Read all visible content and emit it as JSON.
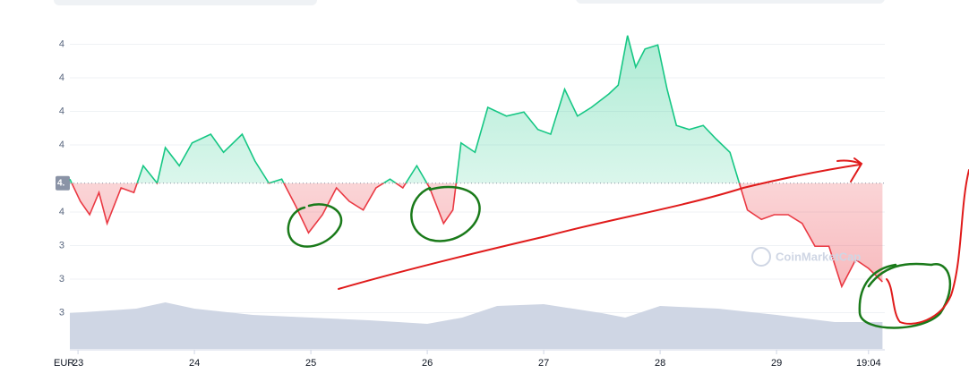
{
  "chart_data": {
    "type": "baseline-line",
    "currency_label": "EUR",
    "watermark": "CoinMarketCap",
    "xlim": [
      22.93,
      29.93
    ],
    "xticks": [
      23,
      24,
      25,
      26,
      27,
      28,
      29,
      {
        "value": 29.79,
        "label": "19:04"
      }
    ],
    "ylim": [
      3.296,
      3.776
    ],
    "yticks": [
      {
        "value": 3.35,
        "label": "3"
      },
      {
        "value": 3.4,
        "label": "3"
      },
      {
        "value": 3.45,
        "label": "3"
      },
      {
        "value": 3.5,
        "label": "4"
      },
      {
        "value": 3.6,
        "label": "4"
      },
      {
        "value": 3.65,
        "label": "4"
      },
      {
        "value": 3.7,
        "label": "4"
      },
      {
        "value": 3.75,
        "label": "4"
      }
    ],
    "baseline": {
      "value": 3.543,
      "label": "4."
    },
    "grid": true,
    "up_color": "#16c784",
    "down_color": "#ea3943",
    "x": [
      22.93,
      23.02,
      23.1,
      23.18,
      23.25,
      23.37,
      23.48,
      23.56,
      23.68,
      23.75,
      23.87,
      23.98,
      24.14,
      24.25,
      24.41,
      24.52,
      24.64,
      24.75,
      24.87,
      24.98,
      25.1,
      25.22,
      25.33,
      25.45,
      25.56,
      25.68,
      25.79,
      25.91,
      26.02,
      26.14,
      26.22,
      26.29,
      26.41,
      26.52,
      26.68,
      26.83,
      26.95,
      27.06,
      27.18,
      27.29,
      27.41,
      27.56,
      27.64,
      27.72,
      27.79,
      27.87,
      27.98,
      28.06,
      28.14,
      28.25,
      28.37,
      28.48,
      28.6,
      28.68,
      28.75,
      28.87,
      28.98,
      29.1,
      29.22,
      29.33,
      29.45,
      29.56,
      29.68,
      29.79,
      29.91
    ],
    "values": [
      3.549,
      3.516,
      3.496,
      3.529,
      3.483,
      3.536,
      3.529,
      3.569,
      3.543,
      3.596,
      3.569,
      3.603,
      3.616,
      3.589,
      3.616,
      3.576,
      3.543,
      3.549,
      3.509,
      3.469,
      3.496,
      3.536,
      3.516,
      3.503,
      3.536,
      3.549,
      3.536,
      3.569,
      3.536,
      3.483,
      3.503,
      3.603,
      3.589,
      3.656,
      3.643,
      3.649,
      3.623,
      3.616,
      3.683,
      3.643,
      3.656,
      3.676,
      3.689,
      3.763,
      3.716,
      3.743,
      3.749,
      3.683,
      3.629,
      3.623,
      3.629,
      3.609,
      3.589,
      3.543,
      3.503,
      3.489,
      3.496,
      3.496,
      3.483,
      3.449,
      3.449,
      3.389,
      3.429,
      3.416,
      3.396
    ],
    "volume": {
      "color": "#cfd6e4",
      "ylim": [
        0,
        360
      ],
      "x": [
        22.93,
        23.5,
        23.75,
        24.0,
        24.5,
        25.0,
        25.5,
        26.0,
        26.3,
        26.6,
        27.0,
        27.5,
        27.7,
        28.0,
        28.5,
        29.0,
        29.5,
        29.91
      ],
      "values": [
        40,
        45,
        52,
        45,
        38,
        35,
        32,
        28,
        35,
        48,
        50,
        40,
        35,
        48,
        45,
        38,
        30,
        30
      ]
    }
  }
}
